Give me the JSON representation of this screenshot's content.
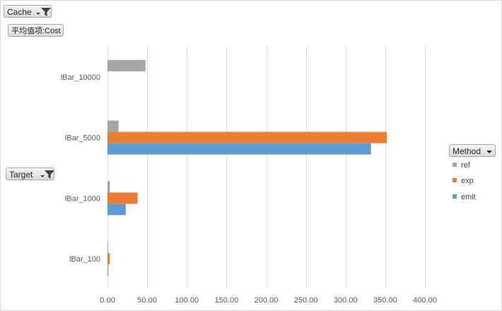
{
  "filters": {
    "cache_label": "Cache",
    "value_field_label": "平均值项:Cost",
    "target_label": "Target",
    "method_label": "Method"
  },
  "colors": {
    "ref": "#a5a5a5",
    "exp": "#ed7d31",
    "emit": "#5b9bd5",
    "grid": "#d9d9d9",
    "axis_text": "#595959"
  },
  "icons": {
    "filter": "funnel-filter-icon",
    "dropdown": "dropdown-arrow-icon"
  },
  "legend": {
    "items": [
      {
        "name": "ref",
        "color": "#a5a5a5"
      },
      {
        "name": "exp",
        "color": "#ed7d31"
      },
      {
        "name": "emit",
        "color": "#5b9bd5"
      }
    ]
  },
  "chart_data": {
    "type": "bar",
    "orientation": "horizontal",
    "categories": [
      "lBar_10000",
      "lBar_5000",
      "lBar_1000",
      "lBar_100"
    ],
    "series": [
      {
        "name": "ref",
        "color": "#a5a5a5",
        "values": [
          48,
          14,
          3,
          1
        ]
      },
      {
        "name": "exp",
        "color": "#ed7d31",
        "values": [
          null,
          352,
          38,
          3
        ]
      },
      {
        "name": "emit",
        "color": "#5b9bd5",
        "values": [
          null,
          332,
          23,
          1
        ]
      }
    ],
    "xlim": [
      0,
      400
    ],
    "xticks": [
      "0.00",
      "50.00",
      "100.00",
      "150.00",
      "200.00",
      "250.00",
      "300.00",
      "350.00",
      "400.00"
    ],
    "grid": true,
    "legend_position": "right"
  }
}
